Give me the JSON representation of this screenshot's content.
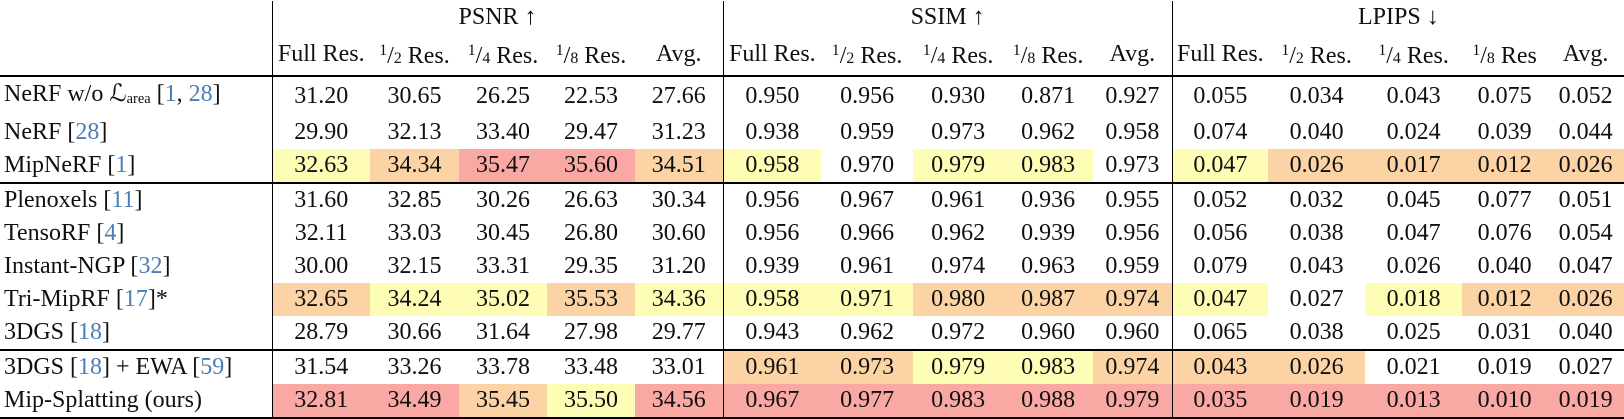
{
  "colors": {
    "best": "#f9a8a4",
    "second_best": "#fbd3a4",
    "third_best": "#fdfdb6",
    "citation_link": "#4a7eb5",
    "text": "#101010",
    "rule": "#000000"
  },
  "metrics": {
    "group_headers": [
      "PSNR ↑",
      "SSIM ↑",
      "LPIPS ↓"
    ],
    "sub_headers": {
      "psnr": [
        {
          "frac": "",
          "text": "Full Res."
        },
        {
          "frac": "1/2",
          "text": "Res."
        },
        {
          "frac": "1/4",
          "text": "Res."
        },
        {
          "frac": "1/8",
          "text": "Res."
        },
        {
          "frac": "",
          "text": "Avg."
        }
      ],
      "ssim": [
        {
          "frac": "",
          "text": "Full Res."
        },
        {
          "frac": "1/2",
          "text": "Res."
        },
        {
          "frac": "1/4",
          "text": "Res."
        },
        {
          "frac": "1/8",
          "text": "Res."
        },
        {
          "frac": "",
          "text": "Avg."
        }
      ],
      "lpips": [
        {
          "frac": "",
          "text": "Full Res."
        },
        {
          "frac": "1/2",
          "text": "Res."
        },
        {
          "frac": "1/4",
          "text": "Res."
        },
        {
          "frac": "1/8",
          "text": "Res"
        },
        {
          "frac": "",
          "text": "Avg."
        }
      ]
    }
  },
  "highlight_legend": {
    "0": "none",
    "1": "third-best (yellow)",
    "2": "second-best (orange)",
    "3": "best (red)"
  },
  "rows": [
    {
      "method": [
        {
          "text": "NeRF w/o ",
          "style": "plain"
        },
        {
          "text": "ℒ",
          "style": "script"
        },
        {
          "text": "area",
          "style": "subscript"
        },
        {
          "text": " [",
          "style": "plain"
        },
        {
          "text": "1",
          "style": "citation"
        },
        {
          "text": ", ",
          "style": "plain"
        },
        {
          "text": "28",
          "style": "citation"
        },
        {
          "text": "]",
          "style": "plain"
        }
      ],
      "psnr": {
        "values": [
          "31.20",
          "30.65",
          "26.25",
          "22.53",
          "27.66"
        ],
        "hl": [
          0,
          0,
          0,
          0,
          0
        ]
      },
      "ssim": {
        "values": [
          "0.950",
          "0.956",
          "0.930",
          "0.871",
          "0.927"
        ],
        "hl": [
          0,
          0,
          0,
          0,
          0
        ]
      },
      "lpips": {
        "values": [
          "0.055",
          "0.034",
          "0.043",
          "0.075",
          "0.052"
        ],
        "hl": [
          0,
          0,
          0,
          0,
          0
        ]
      },
      "rule_after": false
    },
    {
      "method": [
        {
          "text": "NeRF [",
          "style": "plain"
        },
        {
          "text": "28",
          "style": "citation"
        },
        {
          "text": "]",
          "style": "plain"
        }
      ],
      "psnr": {
        "values": [
          "29.90",
          "32.13",
          "33.40",
          "29.47",
          "31.23"
        ],
        "hl": [
          0,
          0,
          0,
          0,
          0
        ]
      },
      "ssim": {
        "values": [
          "0.938",
          "0.959",
          "0.973",
          "0.962",
          "0.958"
        ],
        "hl": [
          0,
          0,
          0,
          0,
          0
        ]
      },
      "lpips": {
        "values": [
          "0.074",
          "0.040",
          "0.024",
          "0.039",
          "0.044"
        ],
        "hl": [
          0,
          0,
          0,
          0,
          0
        ]
      },
      "rule_after": false
    },
    {
      "method": [
        {
          "text": "MipNeRF [",
          "style": "plain"
        },
        {
          "text": "1",
          "style": "citation"
        },
        {
          "text": "]",
          "style": "plain"
        }
      ],
      "psnr": {
        "values": [
          "32.63",
          "34.34",
          "35.47",
          "35.60",
          "34.51"
        ],
        "hl": [
          1,
          2,
          3,
          3,
          2
        ]
      },
      "ssim": {
        "values": [
          "0.958",
          "0.970",
          "0.979",
          "0.983",
          "0.973"
        ],
        "hl": [
          1,
          0,
          1,
          1,
          0
        ]
      },
      "lpips": {
        "values": [
          "0.047",
          "0.026",
          "0.017",
          "0.012",
          "0.026"
        ],
        "hl": [
          1,
          2,
          2,
          2,
          2
        ]
      },
      "rule_after": true
    },
    {
      "method": [
        {
          "text": "Plenoxels [",
          "style": "plain"
        },
        {
          "text": "11",
          "style": "citation"
        },
        {
          "text": "]",
          "style": "plain"
        }
      ],
      "psnr": {
        "values": [
          "31.60",
          "32.85",
          "30.26",
          "26.63",
          "30.34"
        ],
        "hl": [
          0,
          0,
          0,
          0,
          0
        ]
      },
      "ssim": {
        "values": [
          "0.956",
          "0.967",
          "0.961",
          "0.936",
          "0.955"
        ],
        "hl": [
          0,
          0,
          0,
          0,
          0
        ]
      },
      "lpips": {
        "values": [
          "0.052",
          "0.032",
          "0.045",
          "0.077",
          "0.051"
        ],
        "hl": [
          0,
          0,
          0,
          0,
          0
        ]
      },
      "rule_after": false
    },
    {
      "method": [
        {
          "text": "TensoRF [",
          "style": "plain"
        },
        {
          "text": "4",
          "style": "citation"
        },
        {
          "text": "]",
          "style": "plain"
        }
      ],
      "psnr": {
        "values": [
          "32.11",
          "33.03",
          "30.45",
          "26.80",
          "30.60"
        ],
        "hl": [
          0,
          0,
          0,
          0,
          0
        ]
      },
      "ssim": {
        "values": [
          "0.956",
          "0.966",
          "0.962",
          "0.939",
          "0.956"
        ],
        "hl": [
          0,
          0,
          0,
          0,
          0
        ]
      },
      "lpips": {
        "values": [
          "0.056",
          "0.038",
          "0.047",
          "0.076",
          "0.054"
        ],
        "hl": [
          0,
          0,
          0,
          0,
          0
        ]
      },
      "rule_after": false
    },
    {
      "method": [
        {
          "text": "Instant-NGP [",
          "style": "plain"
        },
        {
          "text": "32",
          "style": "citation"
        },
        {
          "text": "]",
          "style": "plain"
        }
      ],
      "psnr": {
        "values": [
          "30.00",
          "32.15",
          "33.31",
          "29.35",
          "31.20"
        ],
        "hl": [
          0,
          0,
          0,
          0,
          0
        ]
      },
      "ssim": {
        "values": [
          "0.939",
          "0.961",
          "0.974",
          "0.963",
          "0.959"
        ],
        "hl": [
          0,
          0,
          0,
          0,
          0
        ]
      },
      "lpips": {
        "values": [
          "0.079",
          "0.043",
          "0.026",
          "0.040",
          "0.047"
        ],
        "hl": [
          0,
          0,
          0,
          0,
          0
        ]
      },
      "rule_after": false
    },
    {
      "method": [
        {
          "text": "Tri-MipRF [",
          "style": "plain"
        },
        {
          "text": "17",
          "style": "citation"
        },
        {
          "text": "]*",
          "style": "plain"
        }
      ],
      "psnr": {
        "values": [
          "32.65",
          "34.24",
          "35.02",
          "35.53",
          "34.36"
        ],
        "hl": [
          2,
          1,
          1,
          2,
          1
        ]
      },
      "ssim": {
        "values": [
          "0.958",
          "0.971",
          "0.980",
          "0.987",
          "0.974"
        ],
        "hl": [
          1,
          1,
          2,
          2,
          2
        ]
      },
      "lpips": {
        "values": [
          "0.047",
          "0.027",
          "0.018",
          "0.012",
          "0.026"
        ],
        "hl": [
          1,
          0,
          1,
          2,
          2
        ]
      },
      "rule_after": false
    },
    {
      "method": [
        {
          "text": "3DGS [",
          "style": "plain"
        },
        {
          "text": "18",
          "style": "citation"
        },
        {
          "text": "]",
          "style": "plain"
        }
      ],
      "psnr": {
        "values": [
          "28.79",
          "30.66",
          "31.64",
          "27.98",
          "29.77"
        ],
        "hl": [
          0,
          0,
          0,
          0,
          0
        ]
      },
      "ssim": {
        "values": [
          "0.943",
          "0.962",
          "0.972",
          "0.960",
          "0.960"
        ],
        "hl": [
          0,
          0,
          0,
          0,
          0
        ]
      },
      "lpips": {
        "values": [
          "0.065",
          "0.038",
          "0.025",
          "0.031",
          "0.040"
        ],
        "hl": [
          0,
          0,
          0,
          0,
          0
        ]
      },
      "rule_after": true
    },
    {
      "method": [
        {
          "text": "3DGS [",
          "style": "plain"
        },
        {
          "text": "18",
          "style": "citation"
        },
        {
          "text": "] + EWA [",
          "style": "plain"
        },
        {
          "text": "59",
          "style": "citation"
        },
        {
          "text": "]",
          "style": "plain"
        }
      ],
      "psnr": {
        "values": [
          "31.54",
          "33.26",
          "33.78",
          "33.48",
          "33.01"
        ],
        "hl": [
          0,
          0,
          0,
          0,
          0
        ]
      },
      "ssim": {
        "values": [
          "0.961",
          "0.973",
          "0.979",
          "0.983",
          "0.974"
        ],
        "hl": [
          2,
          2,
          1,
          1,
          2
        ]
      },
      "lpips": {
        "values": [
          "0.043",
          "0.026",
          "0.021",
          "0.019",
          "0.027"
        ],
        "hl": [
          2,
          2,
          0,
          0,
          0
        ]
      },
      "rule_after": false
    },
    {
      "method": [
        {
          "text": "Mip-Splatting (ours)",
          "style": "plain"
        }
      ],
      "psnr": {
        "values": [
          "32.81",
          "34.49",
          "35.45",
          "35.50",
          "34.56"
        ],
        "hl": [
          3,
          3,
          2,
          1,
          3
        ]
      },
      "ssim": {
        "values": [
          "0.967",
          "0.977",
          "0.983",
          "0.988",
          "0.979"
        ],
        "hl": [
          3,
          3,
          3,
          3,
          3
        ]
      },
      "lpips": {
        "values": [
          "0.035",
          "0.019",
          "0.013",
          "0.010",
          "0.019"
        ],
        "hl": [
          3,
          3,
          3,
          3,
          3
        ]
      },
      "rule_after": false
    }
  ]
}
